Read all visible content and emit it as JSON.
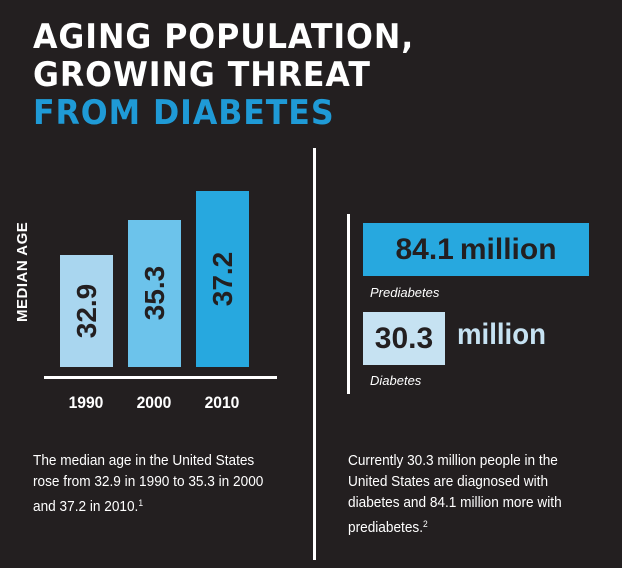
{
  "title": {
    "line1": "AGING POPULATION,",
    "line2": "GROWING THREAT",
    "line3": "FROM DIABETES"
  },
  "colors": {
    "background": "#231f20",
    "accent": "#1f9ad6",
    "bar_1990": "#a9d6ef",
    "bar_2000": "#6cc3eb",
    "bar_2010": "#27a8df",
    "box_prediabetes": "#27a8df",
    "box_diabetes": "#c6e2f2"
  },
  "chart_data": [
    {
      "type": "bar",
      "ylabel": "MEDIAN AGE",
      "categories": [
        "1990",
        "2000",
        "2010"
      ],
      "values": [
        32.9,
        35.3,
        37.2
      ],
      "value_labels": [
        "32.9",
        "35.3",
        "37.2"
      ],
      "ylim": [
        0,
        40
      ],
      "grid": false,
      "legend": "none"
    },
    {
      "type": "bar",
      "orientation": "horizontal",
      "categories": [
        "Prediabetes",
        "Diabetes"
      ],
      "values": [
        84.1,
        30.3
      ],
      "value_labels": [
        "84.1",
        "30.3"
      ],
      "unit": "million",
      "grid": false,
      "legend": "none"
    }
  ],
  "captions": {
    "left": "The median age in the United States rose from 32.9 in 1990 to 35.3 in 2000 and 37.2 in 2010.",
    "left_footnote": "1",
    "right": "Currently 30.3 million people in the United States are diagnosed with diabetes and 84.1 million more with prediabetes.",
    "right_footnote": "2"
  }
}
